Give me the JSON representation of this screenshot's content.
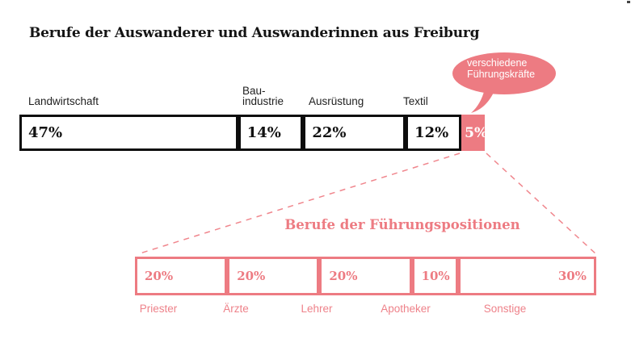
{
  "main_title": "Berufe der Auswanderer und Auswanderinnen aus Freiburg",
  "colors": {
    "accent_pink": "#ED7B82",
    "bar_border_black": "#0D0D0D",
    "background": "#FFFFFF",
    "bubble_text": "#FFFFFF"
  },
  "chart_data": [
    {
      "type": "bar",
      "subtype": "horizontal-stacked-100-percent",
      "title": "Berufe der Auswanderer und Auswanderinnen aus Freiburg",
      "unit": "%",
      "categories": [
        "Landwirtschaft",
        "Bau-industrie",
        "Ausrüstung",
        "Textil",
        "verschiedene Führungskräfte"
      ],
      "values": [
        47,
        14,
        22,
        12,
        5
      ],
      "value_labels": [
        "47%",
        "14%",
        "22%",
        "12%",
        "5%"
      ],
      "highlighted_segment": "verschiedene Führungskräfte",
      "annotation": "Das rosa 5%-Segment (verschiedene Führungskräfte) wird per Sprechblase benannt und mit gestrichelten Linien in die untere Aufschlüsselung vergrößert.",
      "grid": false,
      "axes": false
    },
    {
      "type": "bar",
      "subtype": "horizontal-stacked-100-percent",
      "title": "Berufe der Führungspositionen",
      "unit": "%",
      "categories": [
        "Priester",
        "Ärzte",
        "Lehrer",
        "Apotheker",
        "Sonstige"
      ],
      "values": [
        20,
        20,
        20,
        10,
        30
      ],
      "value_labels": [
        "20%",
        "20%",
        "20%",
        "10%",
        "30%"
      ],
      "grid": false,
      "axes": false
    }
  ],
  "top_chart": {
    "segments": [
      {
        "label": "Landwirtschaft",
        "value": "47%"
      },
      {
        "label": "Bau-industrie",
        "value": "14%"
      },
      {
        "label": "Ausrüstung",
        "value": "22%"
      },
      {
        "label": "Textil",
        "value": "12%"
      },
      {
        "label": "",
        "value": "5%"
      }
    ]
  },
  "speech_bubble": {
    "line1": "verschiedene",
    "line2": "Führungskräfte"
  },
  "bottom_chart": {
    "title": "Berufe der Führungspositionen",
    "segments": [
      {
        "label": "Priester",
        "value": "20%"
      },
      {
        "label": "Ärzte",
        "value": "20%"
      },
      {
        "label": "Lehrer",
        "value": "20%"
      },
      {
        "label": "Apotheker",
        "value": "10%"
      },
      {
        "label": "Sonstige",
        "value": "30%"
      }
    ]
  }
}
